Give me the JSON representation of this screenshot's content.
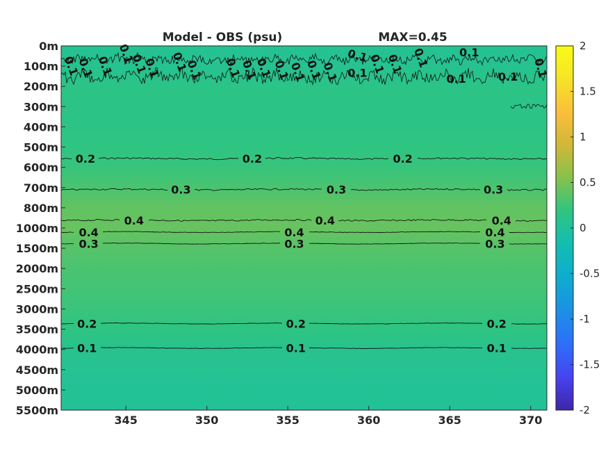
{
  "chart_data": {
    "type": "heatmap",
    "title": "Model - OBS (psu)",
    "max_label": "MAX=0.45",
    "x_ticks": [
      345,
      350,
      355,
      360,
      365,
      370
    ],
    "xlim": [
      341,
      371
    ],
    "y_ticks": [
      "0m",
      "100m",
      "200m",
      "300m",
      "400m",
      "500m",
      "600m",
      "700m",
      "800m",
      "1000m",
      "1500m",
      "2000m",
      "2500m",
      "3000m",
      "3500m",
      "4000m",
      "4500m",
      "5000m",
      "5500m"
    ],
    "colorbar": {
      "ticks": [
        "2",
        "1.5",
        "1",
        "0.5",
        "0",
        "-0.5",
        "-1",
        "-1.5",
        "-2"
      ],
      "lim": [
        -2,
        2
      ],
      "colors": [
        "#3e26a8",
        "#4743f0",
        "#2e6ffa",
        "#1c90e5",
        "#0eacd0",
        "#13bdb1",
        "#2ec482",
        "#85c24c",
        "#d0b83a",
        "#fbbe3a",
        "#f5e428",
        "#f9fb15"
      ]
    },
    "profile": [
      {
        "level": 0,
        "value": 0.06
      },
      {
        "level": 1,
        "value": 0.08
      },
      {
        "level": 2,
        "value": 0.14
      },
      {
        "level": 3,
        "value": 0.15
      },
      {
        "level": 4,
        "value": 0.16
      },
      {
        "level": 5,
        "value": 0.18
      },
      {
        "level": 6,
        "value": 0.22
      },
      {
        "level": 7,
        "value": 0.3
      },
      {
        "level": 8,
        "value": 0.4
      },
      {
        "level": 9,
        "value": 0.42
      },
      {
        "level": 10,
        "value": 0.35
      },
      {
        "level": 11,
        "value": 0.3
      },
      {
        "level": 12,
        "value": 0.27
      },
      {
        "level": 13,
        "value": 0.23
      },
      {
        "level": 14,
        "value": 0.18
      },
      {
        "level": 15,
        "value": 0.1
      },
      {
        "level": 16,
        "value": 0.06
      },
      {
        "level": 17,
        "value": 0.03
      },
      {
        "level": 18,
        "value": 0.02
      }
    ],
    "contours": [
      {
        "value": 0.2,
        "level": 5.57,
        "labels": [
          {
            "text": "0.2",
            "x": 342.5
          },
          {
            "text": "0.2",
            "x": 352.8
          },
          {
            "text": "0.2",
            "x": 362.1
          }
        ]
      },
      {
        "value": 0.3,
        "level": 7.1,
        "labels": [
          {
            "text": "0.3",
            "x": 348.4
          },
          {
            "text": "0.3",
            "x": 358.0
          },
          {
            "text": "0.3",
            "x": 367.7
          }
        ]
      },
      {
        "value": 0.4,
        "level": 8.62,
        "labels": [
          {
            "text": "0.4",
            "x": 345.5
          },
          {
            "text": "0.4",
            "x": 357.3
          },
          {
            "text": "0.4",
            "x": 368.2
          }
        ]
      },
      {
        "value": 0.4,
        "level": 9.2,
        "labels": [
          {
            "text": "0.4",
            "x": 342.7
          },
          {
            "text": "0.4",
            "x": 355.4
          },
          {
            "text": "0.4",
            "x": 367.8
          }
        ]
      },
      {
        "value": 0.3,
        "level": 9.77,
        "labels": [
          {
            "text": "0.3",
            "x": 342.7
          },
          {
            "text": "0.3",
            "x": 355.4
          },
          {
            "text": "0.3",
            "x": 367.8
          }
        ]
      },
      {
        "value": 0.2,
        "level": 13.72,
        "labels": [
          {
            "text": "0.2",
            "x": 342.6
          },
          {
            "text": "0.2",
            "x": 355.5
          },
          {
            "text": "0.2",
            "x": 367.9
          }
        ]
      },
      {
        "value": 0.1,
        "level": 14.93,
        "labels": [
          {
            "text": "0.1",
            "x": 342.6
          },
          {
            "text": "0.1",
            "x": 355.5
          },
          {
            "text": "0.1",
            "x": 367.9
          }
        ]
      }
    ],
    "surface_contour": {
      "value": 0.1,
      "labels": [
        {
          "text": "0.1",
          "x": 341.6,
          "level": 1.0,
          "angle": 70
        },
        {
          "text": "0.1",
          "x": 342.5,
          "level": 1.1,
          "angle": 70
        },
        {
          "text": "0.1",
          "x": 343.7,
          "level": 1.0,
          "angle": 70
        },
        {
          "text": "0.1",
          "x": 345.0,
          "level": 0.4,
          "angle": 70
        },
        {
          "text": "0.1",
          "x": 345.8,
          "level": 0.9,
          "angle": 70
        },
        {
          "text": "0.1",
          "x": 346.6,
          "level": 1.1,
          "angle": 70
        },
        {
          "text": "0.1",
          "x": 348.3,
          "level": 0.8,
          "angle": 70
        },
        {
          "text": "0.1",
          "x": 349.2,
          "level": 1.2,
          "angle": 70
        },
        {
          "text": "0.1",
          "x": 351.6,
          "level": 1.1,
          "angle": 70
        },
        {
          "text": "0.1",
          "x": 352.6,
          "level": 1.2,
          "angle": 70
        },
        {
          "text": "0.1",
          "x": 353.5,
          "level": 1.1,
          "angle": 70
        },
        {
          "text": "0.1",
          "x": 354.6,
          "level": 1.2,
          "angle": 70
        },
        {
          "text": "0.1",
          "x": 355.6,
          "level": 1.3,
          "angle": 70
        },
        {
          "text": "0.1",
          "x": 356.6,
          "level": 1.2,
          "angle": 70
        },
        {
          "text": "0.1",
          "x": 357.6,
          "level": 1.3,
          "angle": 70
        },
        {
          "text": "0.1",
          "x": 359.3,
          "level": 0.5,
          "angle": 15
        },
        {
          "text": "0.1",
          "x": 359.3,
          "level": 1.35,
          "angle": 0
        },
        {
          "text": "0.1",
          "x": 360.5,
          "level": 0.9,
          "angle": 70
        },
        {
          "text": "0.1",
          "x": 361.6,
          "level": 0.9,
          "angle": 70
        },
        {
          "text": "0.1",
          "x": 363.2,
          "level": 0.6,
          "angle": 70
        },
        {
          "text": "0.1",
          "x": 366.2,
          "level": 0.35,
          "angle": 0
        },
        {
          "text": "0.1",
          "x": 365.4,
          "level": 1.65,
          "angle": 0
        },
        {
          "text": "0.1",
          "x": 368.6,
          "level": 1.55,
          "angle": 0
        },
        {
          "text": "0.1",
          "x": 370.6,
          "level": 1.1,
          "angle": 75
        }
      ]
    }
  }
}
